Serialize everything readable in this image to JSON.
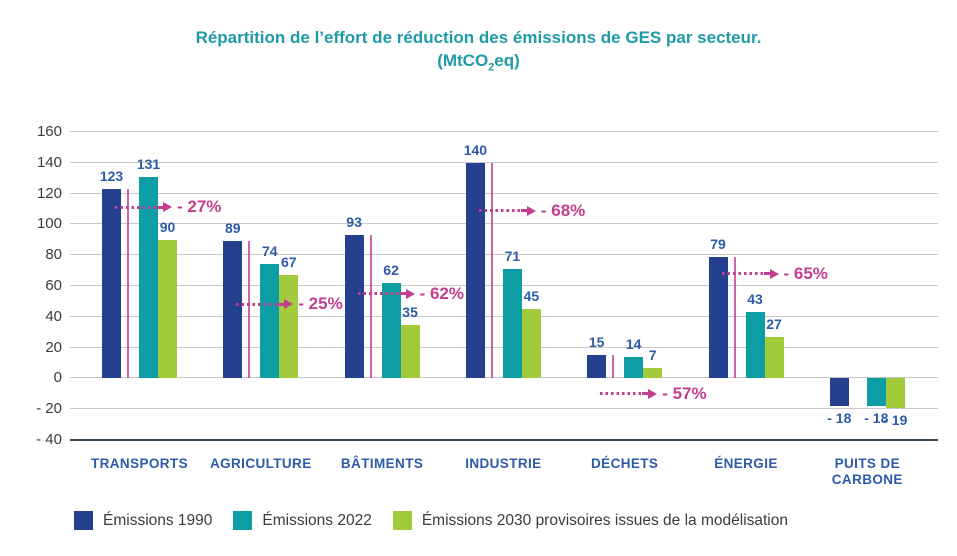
{
  "title": {
    "line1": "Répartition de l’effort de réduction des émissions de GES par secteur.",
    "line2_pre": "(MtCO",
    "line2_sub": "2",
    "line2_post": "eq)"
  },
  "chart_data": {
    "type": "bar",
    "title": "Répartition de l’effort de réduction des émissions de GES par secteur.",
    "subtitle": "(MtCO2eq)",
    "categories": [
      "TRANSPORTS",
      "AGRICULTURE",
      "BÂTIMENTS",
      "INDUSTRIE",
      "DÉCHETS",
      "ÉNERGIE",
      "PUITS DE\nCARBONE"
    ],
    "series": [
      {
        "name": "Émissions 1990",
        "color": "#24408F",
        "values": [
          123,
          89,
          93,
          140,
          15,
          79,
          -18
        ]
      },
      {
        "name": "Émissions 2022",
        "color": "#0D9DA4",
        "values": [
          131,
          74,
          62,
          71,
          14,
          43,
          -18
        ]
      },
      {
        "name": "Émissions 2030 provisoires issues de la modélisation",
        "color": "#A2CB3C",
        "values": [
          90,
          67,
          35,
          45,
          7,
          27,
          -19
        ]
      }
    ],
    "annotations": [
      {
        "category_index": 0,
        "label": "- 27%",
        "arrow_y": 111,
        "reference_value": 123,
        "show_line": true
      },
      {
        "category_index": 1,
        "label": "- 25%",
        "arrow_y": 48,
        "reference_value": 89,
        "show_line": true
      },
      {
        "category_index": 2,
        "label": "- 62%",
        "arrow_y": 55,
        "reference_value": 93,
        "show_line": true
      },
      {
        "category_index": 3,
        "label": "- 68%",
        "arrow_y": 109,
        "reference_value": 140,
        "show_line": true
      },
      {
        "category_index": 4,
        "label": "- 57%",
        "arrow_y": -10,
        "reference_value": 15,
        "show_line": true
      },
      {
        "category_index": 5,
        "label": "- 65%",
        "arrow_y": 68,
        "reference_value": 79,
        "show_line": true
      }
    ],
    "ylim": [
      -40,
      160
    ],
    "yticks": [
      160,
      140,
      120,
      100,
      80,
      60,
      40,
      20,
      0,
      -20,
      -40
    ],
    "ytick_labels": [
      "160",
      "140",
      "120",
      "100",
      "80",
      "60",
      "40",
      "20",
      "0",
      "- 20",
      "- 40"
    ],
    "grid": true,
    "legend_position": "bottom",
    "xlabel": "",
    "ylabel": "",
    "colors": {
      "title_teal": "#1F9AA9",
      "annotation_pink": "#C23E8E",
      "value_blue": "#2D5BA9",
      "grid_gray": "#C9C9C9",
      "axis_dark": "#3E4C59",
      "tick_text": "#3B3B3B"
    }
  }
}
